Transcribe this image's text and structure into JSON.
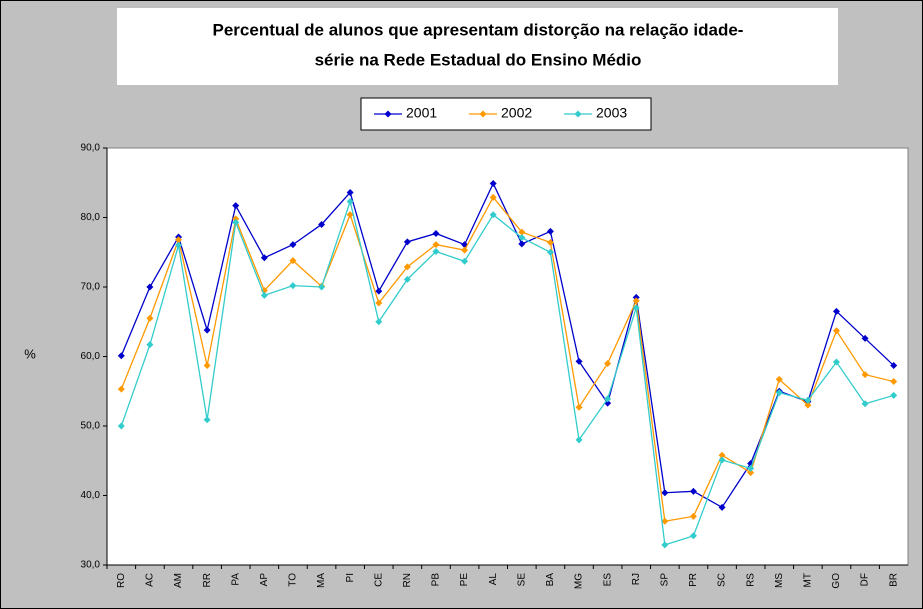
{
  "chart_data": {
    "type": "line",
    "title": [
      "Percentual de alunos que apresentam distorção na relação idade-",
      "série na Rede Estadual do Ensino Médio"
    ],
    "y_label": "%",
    "categories": [
      "RO",
      "AC",
      "AM",
      "RR",
      "PA",
      "AP",
      "TO",
      "MA",
      "PI",
      "CE",
      "RN",
      "PB",
      "PE",
      "AL",
      "SE",
      "BA",
      "MG",
      "ES",
      "RJ",
      "SP",
      "PR",
      "SC",
      "RS",
      "MS",
      "MT",
      "GO",
      "DF",
      "BR"
    ],
    "series": [
      {
        "name": "2001",
        "color": "#0000cc",
        "values": [
          60.1,
          70.0,
          77.2,
          63.8,
          81.7,
          74.2,
          76.1,
          79.0,
          83.6,
          69.4,
          76.5,
          77.7,
          76.1,
          84.9,
          76.2,
          78.0,
          59.3,
          53.3,
          68.5,
          40.4,
          40.6,
          38.3,
          44.6,
          55.0,
          53.5,
          66.5,
          62.6,
          58.7
        ]
      },
      {
        "name": "2002",
        "color": "#ff9900",
        "values": [
          55.3,
          65.5,
          76.8,
          58.7,
          79.8,
          69.5,
          73.8,
          70.1,
          80.4,
          67.7,
          72.9,
          76.1,
          75.3,
          82.9,
          77.9,
          76.4,
          52.7,
          59.0,
          68.0,
          36.3,
          37.0,
          45.8,
          43.3,
          56.7,
          53.0,
          63.7,
          57.4,
          56.4
        ]
      },
      {
        "name": "2003",
        "color": "#33cccc",
        "values": [
          50.0,
          61.7,
          76.0,
          50.9,
          79.3,
          68.8,
          70.2,
          70.0,
          82.3,
          65.0,
          71.1,
          75.1,
          73.7,
          80.4,
          77.1,
          75.0,
          48.0,
          53.9,
          67.0,
          32.9,
          34.2,
          45.1,
          43.9,
          54.8,
          53.7,
          59.2,
          53.2,
          54.4
        ]
      }
    ],
    "ylim": [
      30,
      90
    ],
    "yticks": [
      {
        "value": 30,
        "label": "30,0"
      },
      {
        "value": 40,
        "label": "40,0"
      },
      {
        "value": 50,
        "label": "50,0"
      },
      {
        "value": 60,
        "label": "60,0"
      },
      {
        "value": 70,
        "label": "70,0"
      },
      {
        "value": 80,
        "label": "80,0"
      },
      {
        "value": 90,
        "label": "90,0"
      }
    ],
    "grid": false,
    "legend": "top"
  }
}
